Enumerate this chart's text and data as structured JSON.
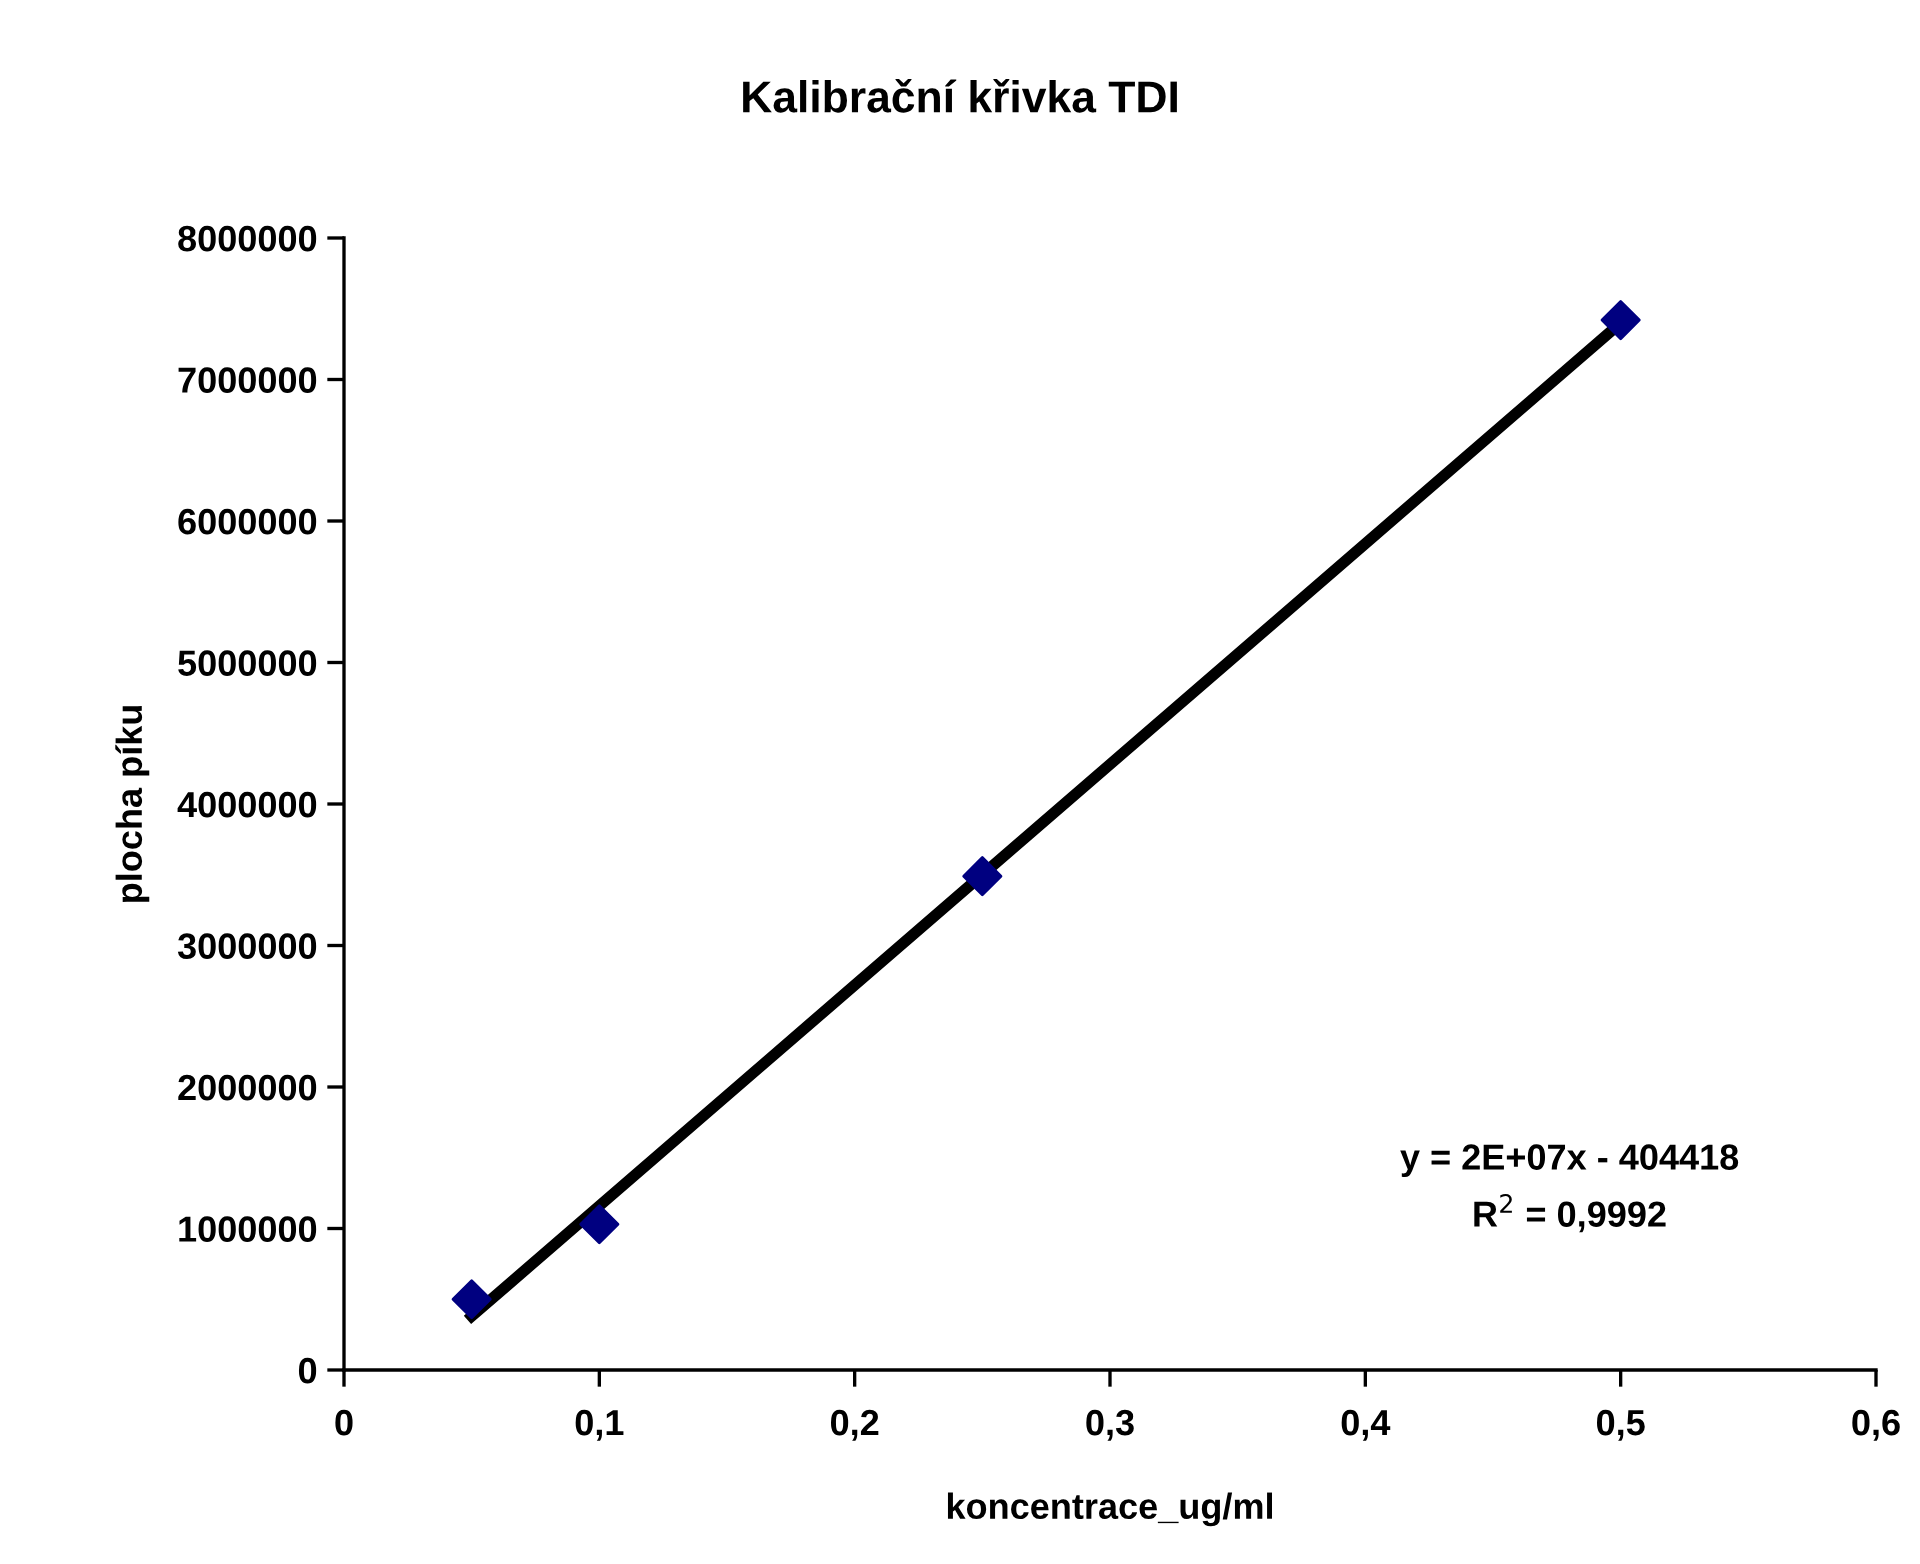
{
  "chart_data": {
    "type": "scatter",
    "title": "Kalibrační křivka TDI",
    "xlabel": "koncentrace_ug/ml",
    "ylabel": "plocha píku",
    "series": [
      {
        "type": "line",
        "color": "#000000",
        "x": [
          0.05,
          0.5
        ],
        "values": [
          380000,
          7400000
        ],
        "marker": "none",
        "line_style": "solid"
      },
      {
        "type": "scatter",
        "color": "#000080",
        "x": [
          0.05,
          0.1,
          0.25,
          0.5
        ],
        "values": [
          500000,
          1030000,
          3490000,
          7420000
        ],
        "marker": "diamond"
      }
    ],
    "xlim": [
      0,
      0.6
    ],
    "xticks": [
      0,
      {
        "value": 0.1,
        "label": "0,1"
      },
      {
        "value": 0.2,
        "label": "0,2"
      },
      {
        "value": 0.3,
        "label": "0,3"
      },
      {
        "value": 0.4,
        "label": "0,4"
      },
      {
        "value": 0.5,
        "label": "0,5"
      },
      {
        "value": 0.6,
        "label": "0,6"
      }
    ],
    "ylim": [
      0,
      8000000
    ],
    "yticks": [
      0,
      1000000,
      2000000,
      3000000,
      4000000,
      5000000,
      6000000,
      7000000,
      8000000
    ],
    "annotations": [
      {
        "text": "y = 2E+07x - 404418\nR$^{2}$ = 0,9992"
      }
    ],
    "grid": false,
    "legend": false
  }
}
